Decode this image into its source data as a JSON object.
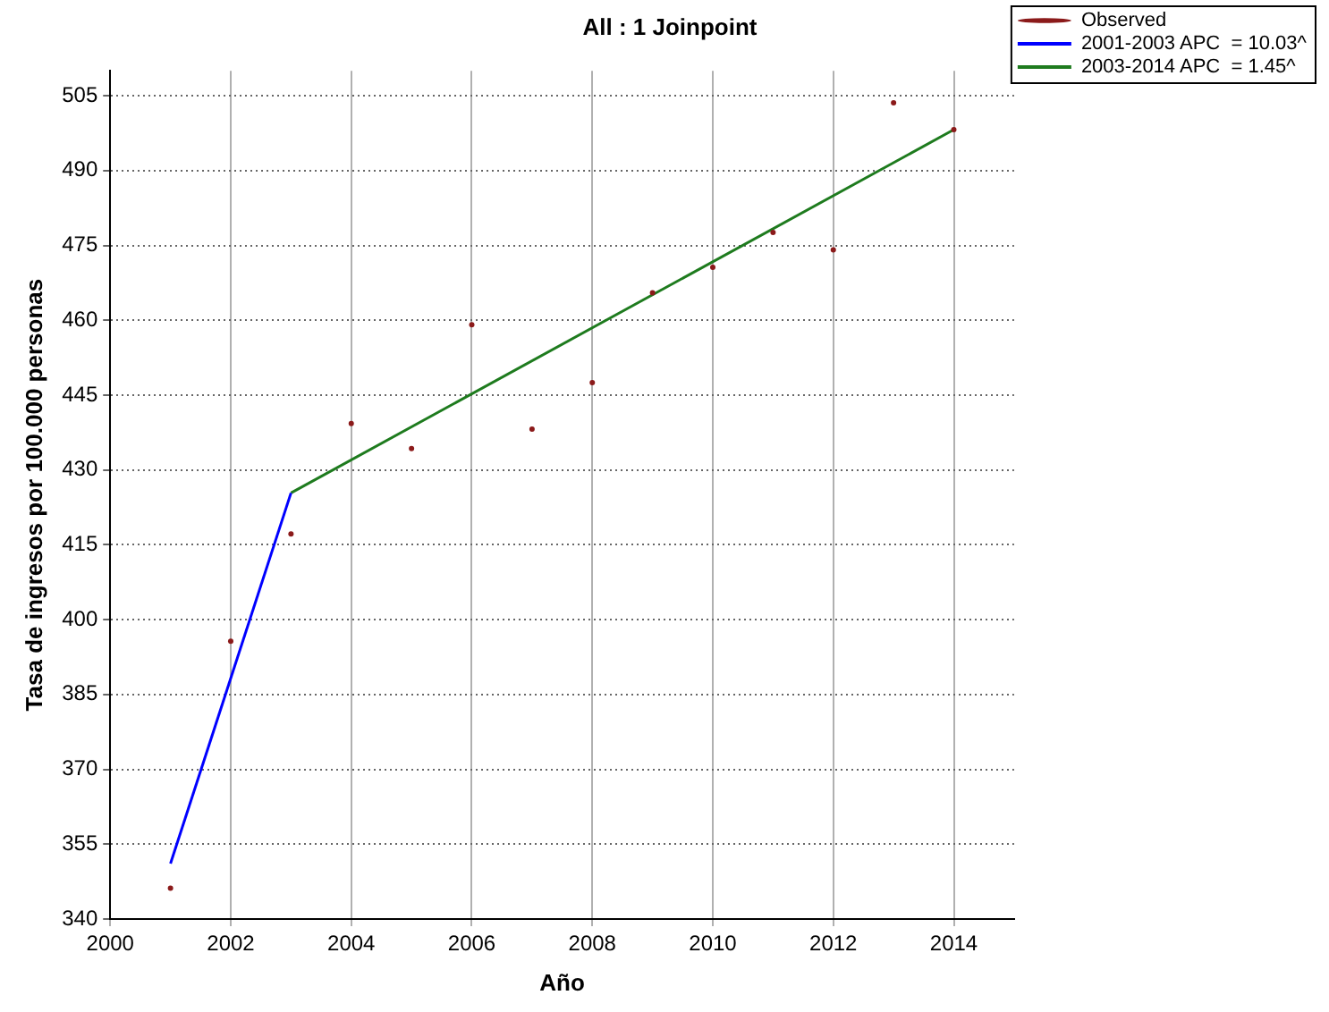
{
  "chart_data": {
    "type": "scatter",
    "title": "All : 1 Joinpoint",
    "xlabel": "Año",
    "ylabel": "Tasa de ingresos por 100.000 personas",
    "xlim": [
      2000,
      2015
    ],
    "xticks": [
      {
        "value": 2000,
        "label": "2000"
      },
      {
        "value": 2002,
        "label": "2002"
      },
      {
        "value": 2004,
        "label": "2004"
      },
      {
        "value": 2006,
        "label": "2006"
      },
      {
        "value": 2008,
        "label": "2008"
      },
      {
        "value": 2010,
        "label": "2010"
      },
      {
        "value": 2012,
        "label": "2012"
      },
      {
        "value": 2014,
        "label": "2014"
      }
    ],
    "ylim": [
      340,
      510
    ],
    "yticks": [
      340,
      355,
      370,
      385,
      400,
      415,
      430,
      445,
      460,
      475,
      490,
      505
    ],
    "grid": true,
    "legend": "top right",
    "series": [
      {
        "name": "Observed",
        "marker": "circle",
        "color": "#8b1a1a",
        "x": [
          2001,
          2002,
          2003,
          2004,
          2005,
          2006,
          2007,
          2008,
          2009,
          2010,
          2011,
          2012,
          2013,
          2014
        ],
        "values": [
          346.2,
          395.7,
          417.2,
          439.3,
          434.3,
          459.1,
          438.2,
          447.5,
          465.5,
          470.6,
          477.6,
          474.1,
          503.6,
          498.2
        ]
      },
      {
        "name": "2001-2003 APC  = 10.03^",
        "type": "line",
        "marker": "none",
        "color": "#0000ff",
        "x": [
          2001,
          2003
        ],
        "values": [
          351.1,
          425.4
        ]
      },
      {
        "name": "2003-2014 APC  = 1.45^",
        "type": "line",
        "marker": "none",
        "color": "#1e7b1e",
        "x": [
          2003,
          2014
        ],
        "values": [
          425.4,
          498.2
        ]
      }
    ]
  }
}
